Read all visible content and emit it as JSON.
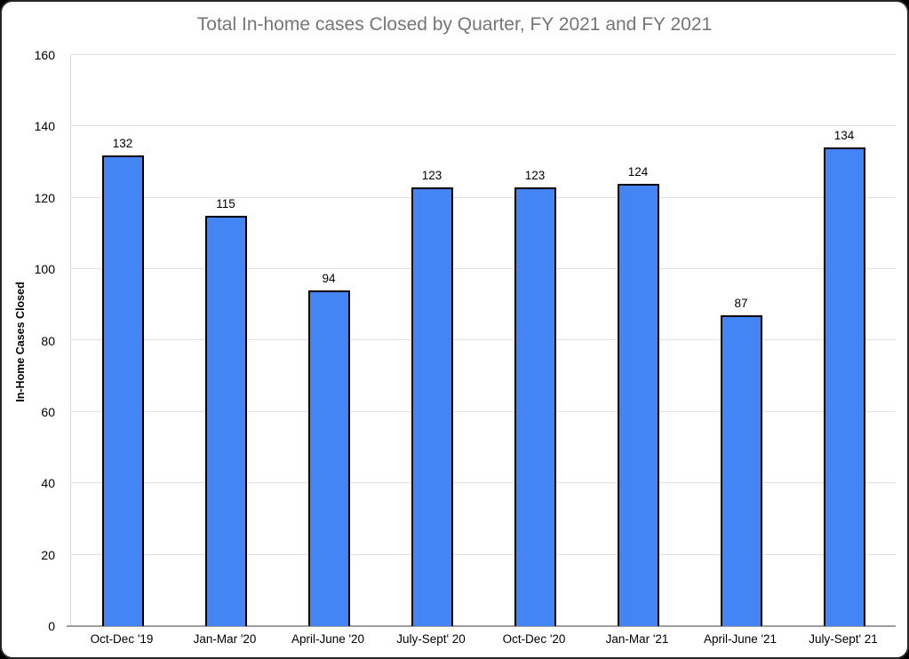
{
  "frame": {
    "background": "#ffffff",
    "border_color": "#262626",
    "outside_color": "#000000"
  },
  "chart_data": {
    "type": "bar",
    "title": "Total In-home cases Closed by Quarter, FY 2021 and FY 2021",
    "categories": [
      "Oct-Dec '19",
      "Jan-Mar '20",
      "April-June '20",
      "July-Sept' 20",
      "Oct-Dec '20",
      "Jan-Mar '21",
      "April-June '21",
      "July-Sept' 21"
    ],
    "values": [
      132,
      115,
      94,
      123,
      123,
      124,
      87,
      134
    ],
    "xlabel": "",
    "ylabel": "In-Home Cases Closed",
    "ylim": [
      0,
      160
    ],
    "yticks": [
      0,
      20,
      40,
      60,
      80,
      100,
      120,
      140,
      160
    ],
    "grid": "horizontal",
    "legend": "none",
    "data_labels": true,
    "colors": {
      "bar_fill": "#4385f4",
      "bar_border": "#000000",
      "gridline": "#e0e0e0",
      "axis_line": "#9e9e9e",
      "axis_edge_line": "#d9d9d9",
      "title_text": "#757575",
      "tick_text": "#000000",
      "value_label_text": "#000000"
    }
  }
}
